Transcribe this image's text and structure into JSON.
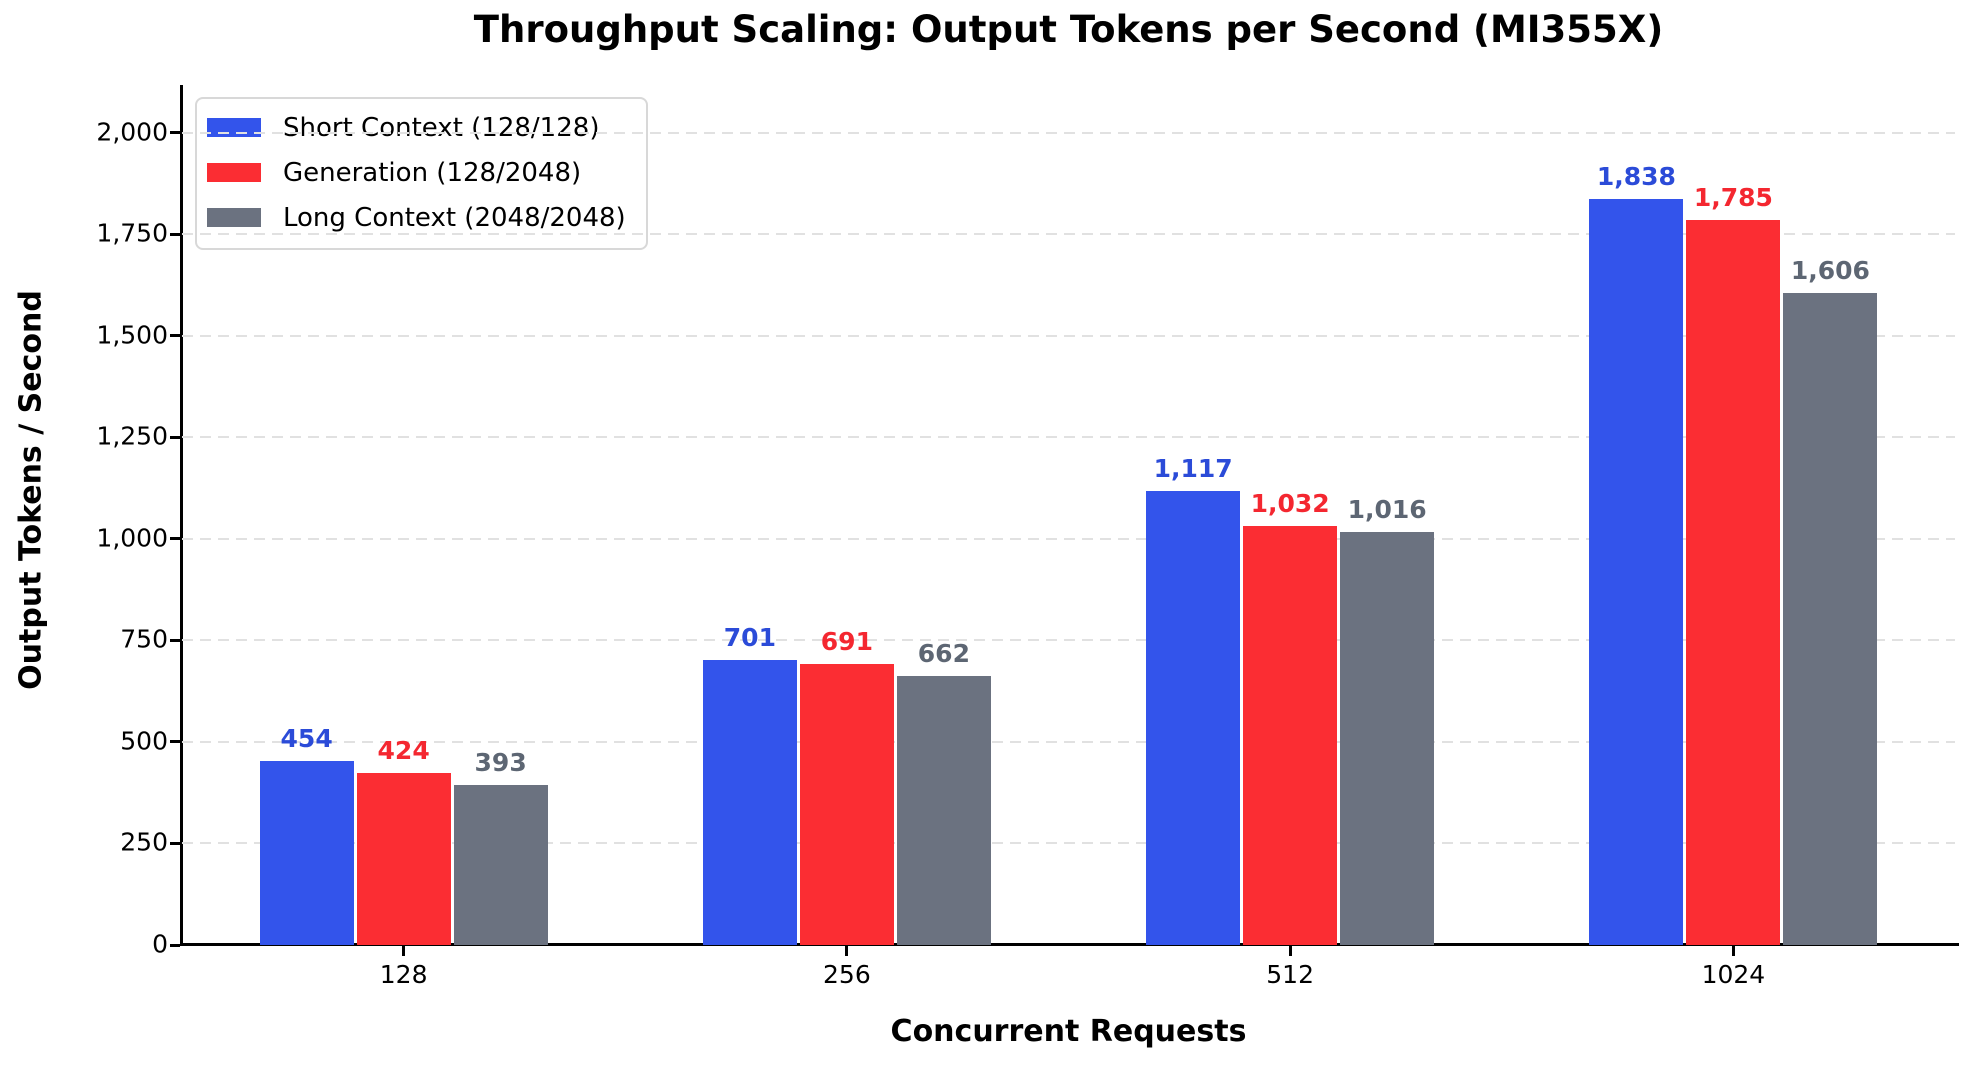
{
  "chart_data": {
    "type": "bar",
    "title": "Throughput Scaling: Output Tokens per Second (MI355X)",
    "xlabel": "Concurrent Requests",
    "ylabel": "Output Tokens / Second",
    "categories": [
      "128",
      "256",
      "512",
      "1024"
    ],
    "series": [
      {
        "name": "Short Context (128/128)",
        "color": "#3354EB",
        "label_color": "#2B4BD8",
        "values": [
          454,
          701,
          1117,
          1838
        ],
        "value_labels": [
          "454",
          "701",
          "1,117",
          "1,838"
        ]
      },
      {
        "name": "Generation (128/2048)",
        "color": "#FB2D33",
        "label_color": "#F42730",
        "values": [
          424,
          691,
          1032,
          1785
        ],
        "value_labels": [
          "424",
          "691",
          "1,032",
          "1,785"
        ]
      },
      {
        "name": "Long Context (2048/2048)",
        "color": "#6B7280",
        "label_color": "#5D6673",
        "values": [
          393,
          662,
          1016,
          1606
        ],
        "value_labels": [
          "393",
          "662",
          "1,016",
          "1,606"
        ]
      }
    ],
    "ylim": [
      0,
      2118
    ],
    "yticks": [
      0,
      250,
      500,
      750,
      1000,
      1250,
      1500,
      1750,
      2000
    ],
    "ytick_labels": [
      "0",
      "250",
      "500",
      "750",
      "1,000",
      "1,250",
      "1,500",
      "1,750",
      "2,000"
    ],
    "grid": "horizontal-dashed",
    "grid_color": "#e1e1e1",
    "spine_color": "#000000",
    "legend_position": "upper-left"
  }
}
